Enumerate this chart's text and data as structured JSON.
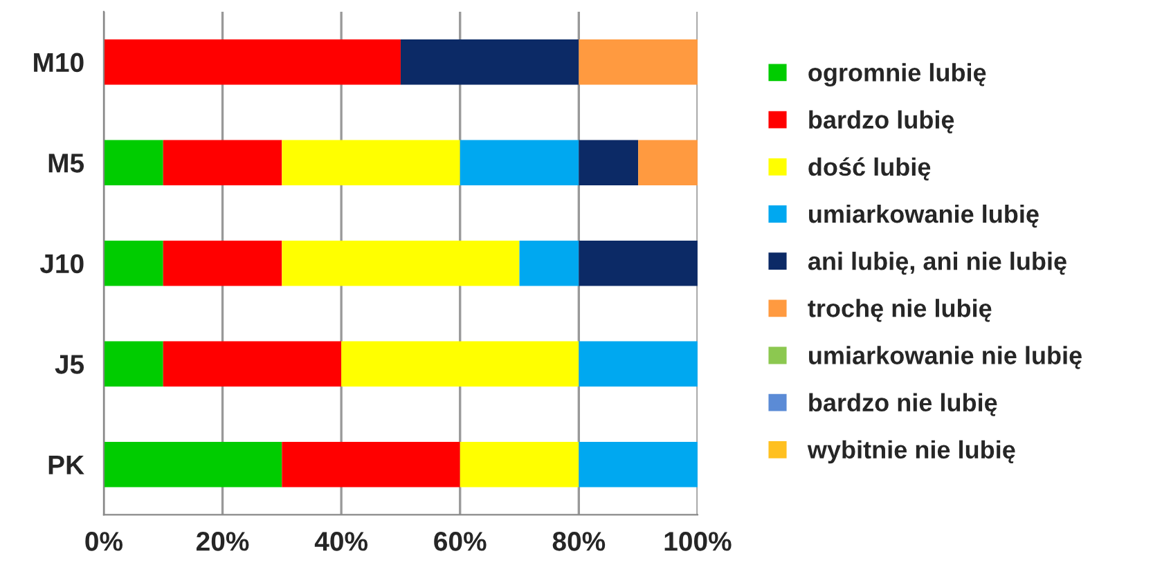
{
  "chart_data": {
    "type": "bar",
    "orientation": "horizontal",
    "stacked": true,
    "categories": [
      "M10",
      "M5",
      "J10",
      "J5",
      "PK"
    ],
    "series": [
      {
        "name": "ogromnie lubię",
        "color": "#00cc00",
        "values": [
          null,
          10,
          10,
          10,
          30
        ]
      },
      {
        "name": "bardzo lubię",
        "color": "#ff0000",
        "values": [
          50,
          20,
          20,
          30,
          30
        ]
      },
      {
        "name": "dość lubię",
        "color": "#ffff00",
        "values": [
          null,
          30,
          40,
          40,
          20
        ]
      },
      {
        "name": "umiarkowanie lubię",
        "color": "#00a8f0",
        "values": [
          null,
          20,
          10,
          20,
          20
        ]
      },
      {
        "name": "ani lubię, ani nie lubię",
        "color": "#0c2a66",
        "values": [
          30,
          10,
          20,
          null,
          null
        ]
      },
      {
        "name": "trochę nie lubię",
        "color": "#ff9a40",
        "values": [
          20,
          10,
          null,
          null,
          null
        ]
      },
      {
        "name": "umiarkowanie nie lubię",
        "color": "#8cc850",
        "values": [
          null,
          null,
          null,
          null,
          null
        ]
      },
      {
        "name": "bardzo nie lubię",
        "color": "#5b8bd6",
        "values": [
          null,
          null,
          null,
          null,
          null
        ]
      },
      {
        "name": "wybitnie nie lubię",
        "color": "#ffc020",
        "values": [
          null,
          null,
          null,
          null,
          null
        ]
      }
    ],
    "xlim": [
      0,
      100
    ],
    "xticks": [
      {
        "value": 0,
        "label": "0%"
      },
      {
        "value": 20,
        "label": "20%"
      },
      {
        "value": 40,
        "label": "40%"
      },
      {
        "value": 60,
        "label": "60%"
      },
      {
        "value": 80,
        "label": "80%"
      },
      {
        "value": 100,
        "label": "100%"
      }
    ],
    "grid": "x",
    "legend": "right"
  }
}
